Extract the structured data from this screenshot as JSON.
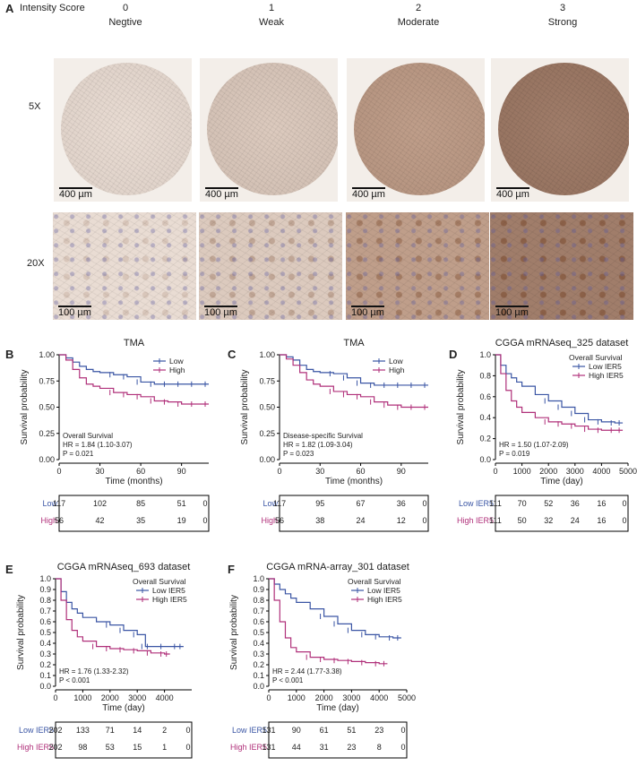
{
  "figure_a": {
    "label": "A",
    "header_title": "Intensity Score",
    "scores": [
      {
        "num": "0",
        "name": "Negtive"
      },
      {
        "num": "1",
        "name": "Weak"
      },
      {
        "num": "2",
        "name": "Moderate"
      },
      {
        "num": "3",
        "name": "Strong"
      }
    ],
    "mag_5x": "5X",
    "mag_20x": "20X",
    "scale_5x": "400 µm",
    "scale_20x": "100 µm",
    "stain_colors": [
      "#e9dcd3",
      "#dccabe",
      "#bf9e8a",
      "#a07d6a"
    ]
  },
  "chart_data": [
    {
      "id": "B",
      "type": "line",
      "title": "TMA",
      "xlabel": "Time (months)",
      "ylabel": "Survival probability",
      "xlim": [
        0,
        110
      ],
      "ylim": [
        0,
        1
      ],
      "xticks": [
        "0",
        "30",
        "60",
        "90"
      ],
      "xtick_values": [
        0,
        30,
        60,
        90
      ],
      "yticks": [
        "0.00",
        "0.25",
        "0.50",
        "0.75",
        "1.00"
      ],
      "ytick_values": [
        0,
        0.25,
        0.5,
        0.75,
        1
      ],
      "legend_title": "",
      "annotation": [
        "Overall Survival",
        "HR = 1.84 (1.10-3.07)",
        "P = 0.021"
      ],
      "series": [
        {
          "name": "Low",
          "color": "#3a55a4",
          "x": [
            0,
            5,
            10,
            15,
            20,
            25,
            30,
            40,
            50,
            60,
            70,
            80,
            90,
            100,
            110
          ],
          "y": [
            1,
            0.97,
            0.93,
            0.89,
            0.86,
            0.84,
            0.83,
            0.81,
            0.79,
            0.74,
            0.72,
            0.72,
            0.72,
            0.72,
            0.72
          ]
        },
        {
          "name": "High",
          "color": "#b0307a",
          "x": [
            0,
            5,
            10,
            15,
            20,
            25,
            30,
            40,
            50,
            60,
            70,
            80,
            90,
            100,
            110
          ],
          "y": [
            1,
            0.95,
            0.86,
            0.78,
            0.72,
            0.7,
            0.68,
            0.64,
            0.62,
            0.6,
            0.56,
            0.55,
            0.53,
            0.53,
            0.53
          ]
        }
      ],
      "risk_table": {
        "rows": [
          {
            "label": "Low",
            "values": [
              "117",
              "102",
              "85",
              "51",
              "0"
            ]
          },
          {
            "label": "High",
            "values": [
              "56",
              "42",
              "35",
              "19",
              "0"
            ]
          }
        ],
        "x": [
          0,
          30,
          60,
          90,
          120
        ]
      }
    },
    {
      "id": "C",
      "type": "line",
      "title": "TMA",
      "xlabel": "Time (months)",
      "ylabel": "Survival probability",
      "xlim": [
        0,
        110
      ],
      "ylim": [
        0,
        1
      ],
      "xticks": [
        "0",
        "30",
        "60",
        "90"
      ],
      "xtick_values": [
        0,
        30,
        60,
        90
      ],
      "yticks": [
        "0.00",
        "0.25",
        "0.50",
        "0.75",
        "1.00"
      ],
      "ytick_values": [
        0,
        0.25,
        0.5,
        0.75,
        1
      ],
      "legend_title": "",
      "annotation": [
        "Disease-specific Survival",
        "HR = 1.82 (1.09-3.04)",
        "P = 0.023"
      ],
      "series": [
        {
          "name": "Low",
          "color": "#3a55a4",
          "x": [
            0,
            5,
            10,
            15,
            20,
            25,
            30,
            40,
            50,
            60,
            70,
            80,
            90,
            100,
            110
          ],
          "y": [
            1,
            0.98,
            0.95,
            0.9,
            0.86,
            0.84,
            0.83,
            0.82,
            0.78,
            0.73,
            0.71,
            0.71,
            0.71,
            0.71,
            0.71
          ]
        },
        {
          "name": "High",
          "color": "#b0307a",
          "x": [
            0,
            5,
            10,
            15,
            20,
            25,
            30,
            40,
            50,
            60,
            70,
            80,
            90,
            100,
            110
          ],
          "y": [
            1,
            0.96,
            0.9,
            0.83,
            0.76,
            0.72,
            0.7,
            0.65,
            0.62,
            0.6,
            0.55,
            0.52,
            0.5,
            0.5,
            0.5
          ]
        }
      ],
      "risk_table": {
        "rows": [
          {
            "label": "Low",
            "values": [
              "117",
              "95",
              "67",
              "36",
              "0"
            ]
          },
          {
            "label": "High",
            "values": [
              "56",
              "38",
              "24",
              "12",
              "0"
            ]
          }
        ],
        "x": [
          0,
          30,
          60,
          90,
          120
        ]
      }
    },
    {
      "id": "D",
      "type": "line",
      "title": "CGGA mRNAseq_325 dataset",
      "xlabel": "Time (day)",
      "ylabel": "Survival probability",
      "xlim": [
        0,
        5000
      ],
      "ylim": [
        0,
        1
      ],
      "xticks": [
        "0",
        "1000",
        "2000",
        "3000",
        "4000",
        "5000"
      ],
      "xtick_values": [
        0,
        1000,
        2000,
        3000,
        4000,
        5000
      ],
      "yticks": [
        "0.0",
        "0.2",
        "0.4",
        "0.6",
        "0.8",
        "1.0"
      ],
      "ytick_values": [
        0,
        0.2,
        0.4,
        0.6,
        0.8,
        1
      ],
      "legend_title": "Overall Survival",
      "annotation": [
        "HR = 1.50 (1.07-2.09)",
        "P = 0.019"
      ],
      "series": [
        {
          "name": "Low IER5",
          "color": "#3a55a4",
          "x": [
            0,
            200,
            400,
            600,
            800,
            1000,
            1500,
            2000,
            2500,
            3000,
            3500,
            4000,
            4500,
            4800
          ],
          "y": [
            1,
            0.9,
            0.82,
            0.78,
            0.74,
            0.7,
            0.62,
            0.56,
            0.5,
            0.44,
            0.38,
            0.36,
            0.35,
            0.35
          ]
        },
        {
          "name": "High IER5",
          "color": "#b0307a",
          "x": [
            0,
            200,
            400,
            600,
            800,
            1000,
            1500,
            2000,
            2500,
            3000,
            3500,
            4000,
            4500,
            4800
          ],
          "y": [
            1,
            0.82,
            0.66,
            0.56,
            0.5,
            0.45,
            0.4,
            0.36,
            0.34,
            0.32,
            0.29,
            0.28,
            0.28,
            0.28
          ]
        }
      ],
      "risk_table": {
        "rows": [
          {
            "label": "Low IER5",
            "values": [
              "111",
              "70",
              "52",
              "36",
              "16",
              "0"
            ]
          },
          {
            "label": "High IER5",
            "values": [
              "111",
              "50",
              "32",
              "24",
              "16",
              "0"
            ]
          }
        ],
        "x": [
          0,
          1000,
          2000,
          3000,
          4000,
          5000
        ]
      }
    },
    {
      "id": "E",
      "type": "line",
      "title": "CGGA mRNAseq_693 dataset",
      "xlabel": "Time (day)",
      "ylabel": "Survival probability",
      "xlim": [
        0,
        5000
      ],
      "ylim": [
        0,
        1
      ],
      "xticks": [
        "0",
        "1000",
        "2000",
        "3000",
        "4000"
      ],
      "xtick_values": [
        0,
        1000,
        2000,
        3000,
        4000
      ],
      "yticks": [
        "0.0",
        "0.1",
        "0.2",
        "0.3",
        "0.4",
        "0.5",
        "0.6",
        "0.7",
        "0.8",
        "0.9",
        "1.0"
      ],
      "ytick_values": [
        0,
        0.1,
        0.2,
        0.3,
        0.4,
        0.5,
        0.6,
        0.7,
        0.8,
        0.9,
        1
      ],
      "legend_title": "Overall Survival",
      "annotation": [
        "HR = 1.76 (1.33-2.32)",
        "P < 0.001"
      ],
      "series": [
        {
          "name": "Low IER5",
          "color": "#3a55a4",
          "x": [
            0,
            200,
            400,
            600,
            800,
            1000,
            1500,
            2000,
            2500,
            3000,
            3300,
            3500,
            4000,
            4500,
            4700
          ],
          "y": [
            1,
            0.88,
            0.78,
            0.72,
            0.68,
            0.64,
            0.6,
            0.57,
            0.52,
            0.48,
            0.37,
            0.37,
            0.37,
            0.37,
            0.37
          ]
        },
        {
          "name": "High IER5",
          "color": "#b0307a",
          "x": [
            0,
            200,
            400,
            600,
            800,
            1000,
            1500,
            2000,
            2500,
            3000,
            3500,
            4000,
            4200
          ],
          "y": [
            1,
            0.8,
            0.62,
            0.52,
            0.46,
            0.42,
            0.37,
            0.35,
            0.34,
            0.33,
            0.31,
            0.3,
            0.3
          ]
        }
      ],
      "risk_table": {
        "rows": [
          {
            "label": "Low IER5",
            "values": [
              "202",
              "133",
              "71",
              "14",
              "2",
              "0"
            ]
          },
          {
            "label": "High IER5",
            "values": [
              "202",
              "98",
              "53",
              "15",
              "1",
              "0"
            ]
          }
        ],
        "x": [
          0,
          1000,
          2000,
          3000,
          4000,
          5000
        ]
      }
    },
    {
      "id": "F",
      "type": "line",
      "title": "CGGA mRNA-array_301 dataset",
      "xlabel": "Time (day)",
      "ylabel": "Survival probability",
      "xlim": [
        0,
        5000
      ],
      "ylim": [
        0,
        1
      ],
      "xticks": [
        "0",
        "1000",
        "2000",
        "3000",
        "4000",
        "5000"
      ],
      "xtick_values": [
        0,
        1000,
        2000,
        3000,
        4000,
        5000
      ],
      "yticks": [
        "0.0",
        "0.1",
        "0.2",
        "0.3",
        "0.4",
        "0.5",
        "0.6",
        "0.7",
        "0.8",
        "0.9",
        "1.0"
      ],
      "ytick_values": [
        0,
        0.1,
        0.2,
        0.3,
        0.4,
        0.5,
        0.6,
        0.7,
        0.8,
        0.9,
        1
      ],
      "legend_title": "Overall Survival",
      "annotation": [
        "HR = 2.44 (1.77-3.38)",
        "P < 0.001"
      ],
      "series": [
        {
          "name": "Low IER5",
          "color": "#3a55a4",
          "x": [
            0,
            200,
            400,
            600,
            800,
            1000,
            1500,
            2000,
            2500,
            3000,
            3500,
            4000,
            4500,
            4800
          ],
          "y": [
            1,
            0.95,
            0.9,
            0.86,
            0.82,
            0.78,
            0.72,
            0.65,
            0.58,
            0.52,
            0.48,
            0.46,
            0.45,
            0.45
          ]
        },
        {
          "name": "High IER5",
          "color": "#b0307a",
          "x": [
            0,
            200,
            400,
            600,
            800,
            1000,
            1500,
            2000,
            2500,
            3000,
            3500,
            4000,
            4300
          ],
          "y": [
            1,
            0.8,
            0.6,
            0.45,
            0.36,
            0.32,
            0.27,
            0.25,
            0.24,
            0.23,
            0.22,
            0.21,
            0.21
          ]
        }
      ],
      "risk_table": {
        "rows": [
          {
            "label": "Low IER5",
            "values": [
              "131",
              "90",
              "61",
              "51",
              "23",
              "0"
            ]
          },
          {
            "label": "High IER5",
            "values": [
              "131",
              "44",
              "31",
              "23",
              "8",
              "0"
            ]
          }
        ],
        "x": [
          0,
          1000,
          2000,
          3000,
          4000,
          5000
        ]
      }
    }
  ]
}
